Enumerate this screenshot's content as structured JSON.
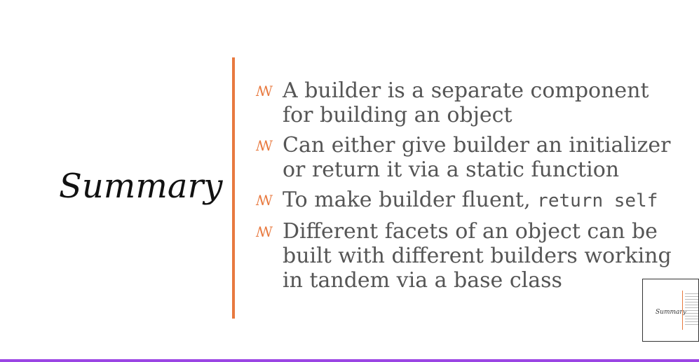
{
  "slide": {
    "title": "Summary",
    "bullet_icon": "ꟿ",
    "bullets": [
      {
        "text": "A builder is a separate component for building an object"
      },
      {
        "text": "Can either give builder an initializer or return it via a static function"
      },
      {
        "text_prefix": "To make builder fluent, ",
        "code": "return self"
      },
      {
        "text": "Different facets of an object can be built with different builders working in tandem via a base class"
      }
    ]
  },
  "thumbnail": {
    "title": "Summary"
  },
  "colors": {
    "accent": "#e8793f",
    "bottom_bar": "#9b45e4",
    "body_text": "#555555",
    "title_text": "#111111"
  }
}
